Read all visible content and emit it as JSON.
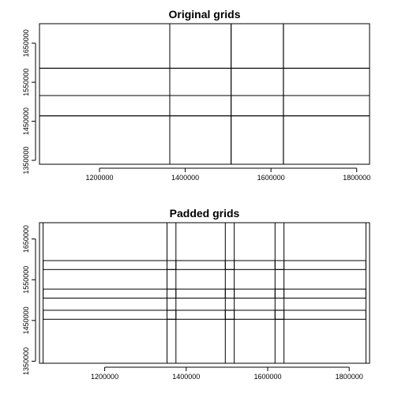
{
  "chart_data": [
    {
      "type": "grid-boxes",
      "title": "Original grids",
      "xlim": [
        1060000,
        1830000
      ],
      "ylim": [
        1340000,
        1700000
      ],
      "x_ticks": [
        1200000,
        1400000,
        1600000,
        1800000
      ],
      "y_ticks": [
        1350000,
        1450000,
        1550000,
        1650000
      ],
      "x_breaks": [
        1060000,
        1364000,
        1507000,
        1629000,
        1830000
      ],
      "y_breaks": [
        1340000,
        1464000,
        1516000,
        1586000,
        1700000
      ]
    },
    {
      "type": "grid-boxes",
      "title": "Padded grids",
      "xlim": [
        1040000,
        1850000
      ],
      "ylim": [
        1345000,
        1690000
      ],
      "x_ticks": [
        1200000,
        1400000,
        1600000,
        1800000
      ],
      "y_ticks": [
        1350000,
        1450000,
        1550000,
        1650000
      ],
      "x_breaks": [
        1060000,
        1364000,
        1507000,
        1629000,
        1830000
      ],
      "y_breaks": [
        1340000,
        1464000,
        1516000,
        1586000,
        1700000
      ],
      "pad_x": 11000,
      "pad_y": 11000
    }
  ]
}
